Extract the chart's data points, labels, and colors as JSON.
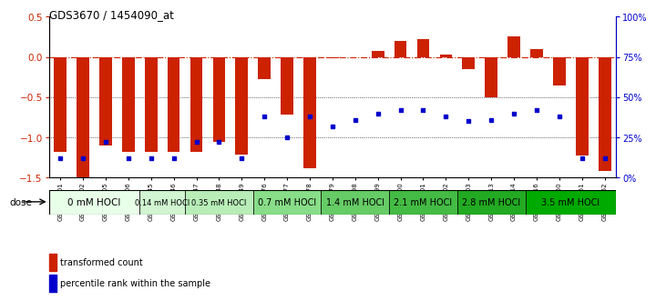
{
  "title": "GDS3670 / 1454090_at",
  "samples": [
    "GSM387601",
    "GSM387602",
    "GSM387605",
    "GSM387606",
    "GSM387645",
    "GSM387646",
    "GSM387647",
    "GSM387648",
    "GSM387649",
    "GSM387676",
    "GSM387677",
    "GSM387678",
    "GSM387679",
    "GSM387698",
    "GSM387699",
    "GSM387700",
    "GSM387701",
    "GSM387702",
    "GSM387703",
    "GSM387713",
    "GSM387714",
    "GSM387716",
    "GSM387750",
    "GSM387751",
    "GSM387752"
  ],
  "red_bars": [
    -1.18,
    -1.5,
    -1.1,
    -1.18,
    -1.18,
    -1.18,
    -1.18,
    -1.06,
    -1.21,
    -0.28,
    -0.72,
    -1.38,
    -0.02,
    -0.01,
    0.08,
    0.2,
    0.22,
    0.03,
    -0.15,
    -0.5,
    0.25,
    0.1,
    -0.36,
    -1.22,
    -1.42
  ],
  "blue_dots_pct": [
    12,
    12,
    22,
    12,
    12,
    12,
    22,
    22,
    12,
    38,
    25,
    38,
    32,
    36,
    40,
    42,
    42,
    38,
    35,
    36,
    40,
    42,
    38,
    12,
    12
  ],
  "dose_groups": [
    {
      "label": "0 mM HOCl",
      "start": 0,
      "end": 4,
      "color": "#e8ffe8",
      "fontsize": 7.5
    },
    {
      "label": "0.14 mM HOCl",
      "start": 4,
      "end": 6,
      "color": "#d0f5d0",
      "fontsize": 6.0
    },
    {
      "label": "0.35 mM HOCl",
      "start": 6,
      "end": 9,
      "color": "#b8edb8",
      "fontsize": 6.0
    },
    {
      "label": "0.7 mM HOCl",
      "start": 9,
      "end": 12,
      "color": "#88dd88",
      "fontsize": 7.0
    },
    {
      "label": "1.4 mM HOCl",
      "start": 12,
      "end": 15,
      "color": "#66cc66",
      "fontsize": 7.0
    },
    {
      "label": "2.1 mM HOCl",
      "start": 15,
      "end": 18,
      "color": "#44bb44",
      "fontsize": 7.0
    },
    {
      "label": "2.8 mM HOCl",
      "start": 18,
      "end": 21,
      "color": "#22aa22",
      "fontsize": 7.0
    },
    {
      "label": "3.5 mM HOCl",
      "start": 21,
      "end": 25,
      "color": "#00aa00",
      "fontsize": 7.0
    }
  ],
  "ylim_left": [
    -1.5,
    0.5
  ],
  "ylim_right": [
    0,
    100
  ],
  "red_color": "#cc2200",
  "blue_color": "#0000cc",
  "bg_color": "#ffffff"
}
